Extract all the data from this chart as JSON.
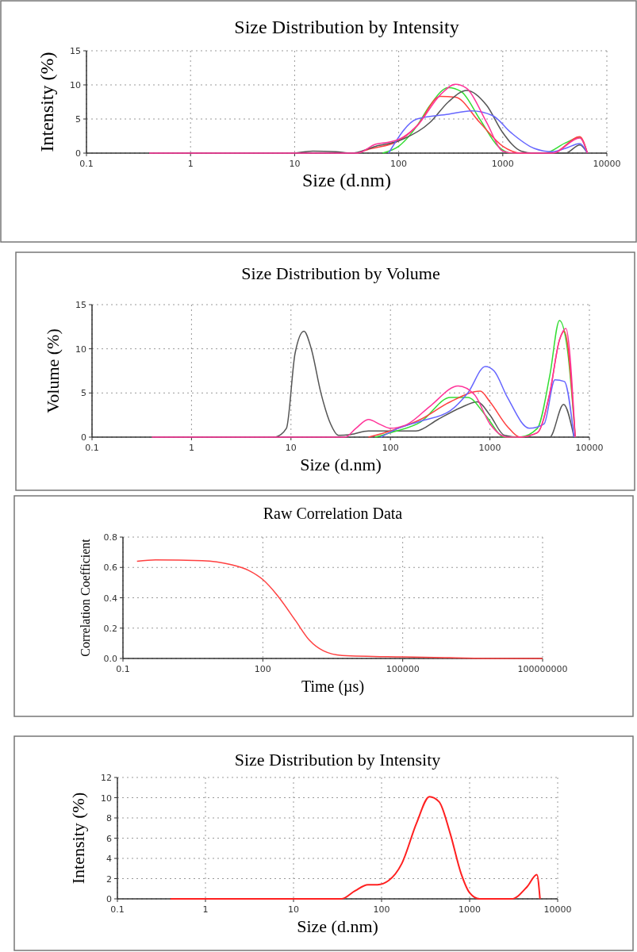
{
  "chart_data": [
    {
      "type": "line",
      "title": "Size Distribution by Intensity",
      "xlabel": "Size (d.nm)",
      "ylabel": "Intensity (%)",
      "log": "x",
      "grid": true,
      "xlim": [
        0.1,
        10000
      ],
      "xticks": [
        0.1,
        1,
        10,
        100,
        1000,
        10000
      ],
      "ylim": [
        0,
        15
      ],
      "yticks": [
        0,
        5,
        10,
        15
      ],
      "series": [
        {
          "color": "#33dd33",
          "x": [
            70,
            100,
            150,
            200,
            300,
            400,
            600,
            900,
            1200,
            2500,
            4000,
            5500,
            6500
          ],
          "values": [
            0,
            1,
            4,
            7,
            9.6,
            9,
            5,
            1,
            0,
            0,
            1.5,
            2.3,
            0
          ]
        },
        {
          "color": "#ff4040",
          "x": [
            40,
            50,
            100,
            150,
            250,
            350,
            600,
            1000,
            1500,
            3000,
            5500,
            6500
          ],
          "values": [
            0,
            0.5,
            1.8,
            4,
            8.3,
            8.2,
            4.5,
            1,
            0,
            0,
            2.4,
            0
          ]
        },
        {
          "color": "#555555",
          "x": [
            10,
            15,
            25,
            35,
            60,
            100,
            200,
            300,
            450,
            700,
            1000,
            1500,
            2000,
            4000,
            5500,
            6500
          ],
          "values": [
            0,
            0.3,
            0.2,
            0,
            1,
            1.8,
            4.5,
            7.5,
            9.2,
            7,
            3,
            0.3,
            0,
            0,
            1.2,
            0
          ]
        },
        {
          "color": "#6666ff",
          "x": [
            80,
            150,
            300,
            500,
            800,
            1200,
            2000,
            3000,
            4000,
            5500,
            6500
          ],
          "values": [
            0,
            5,
            5.7,
            6.2,
            5.5,
            3,
            0.7,
            0.2,
            0.7,
            1.4,
            0
          ]
        },
        {
          "color": "#ff3399",
          "x": [
            0.4,
            40,
            60,
            80,
            100,
            150,
            250,
            350,
            450,
            700,
            1000,
            1300,
            3000,
            5500,
            6500
          ],
          "values": [
            0,
            0,
            1.3,
            1.6,
            2,
            4,
            8.5,
            10.1,
            9.5,
            4.5,
            0.3,
            0,
            0,
            2.2,
            0
          ]
        }
      ]
    },
    {
      "type": "line",
      "title": "Size Distribution by Volume",
      "xlabel": "Size (d.nm)",
      "ylabel": "Volume (%)",
      "log": "x",
      "grid": true,
      "xlim": [
        0.1,
        10000
      ],
      "xticks": [
        0.1,
        1,
        10,
        100,
        1000,
        10000
      ],
      "ylim": [
        0,
        15
      ],
      "yticks": [
        0,
        5,
        10,
        15
      ],
      "series": [
        {
          "color": "#555555",
          "x": [
            7,
            9,
            11,
            13.5,
            16,
            20,
            25,
            30,
            40,
            60,
            100,
            180,
            300,
            500,
            750,
            1000,
            1400,
            2000,
            4000,
            5500,
            7000
          ],
          "values": [
            0,
            1,
            9.5,
            12,
            10,
            5,
            1.5,
            0.2,
            0.3,
            0.7,
            0.7,
            0.7,
            2,
            3.3,
            4,
            2.5,
            0.2,
            0,
            0,
            3.7,
            0
          ]
        },
        {
          "color": "#33dd33",
          "x": [
            70,
            100,
            200,
            400,
            600,
            900,
            1400,
            2000,
            3000,
            4000,
            5000,
            6000,
            7200
          ],
          "values": [
            0,
            0.5,
            1.7,
            4.5,
            4.5,
            2.5,
            0,
            0,
            1,
            7,
            13.2,
            10,
            0
          ]
        },
        {
          "color": "#ff4040",
          "x": [
            60,
            100,
            200,
            400,
            800,
            1000,
            1500,
            2000,
            3000,
            4000,
            5000,
            5600,
            7200
          ],
          "values": [
            0,
            0.7,
            2,
            4,
            5.2,
            4,
            1.2,
            0,
            0.5,
            5,
            11,
            12,
            0
          ]
        },
        {
          "color": "#6666ff",
          "x": [
            80,
            120,
            200,
            400,
            600,
            900,
            1100,
            1500,
            2500,
            3500,
            4500,
            5600,
            7000
          ],
          "values": [
            0,
            1,
            1.8,
            3,
            5,
            8,
            7.5,
            4.5,
            1,
            1.5,
            6.5,
            6.3,
            0
          ]
        },
        {
          "color": "#ff3399",
          "x": [
            0.4,
            35,
            45,
            60,
            80,
            100,
            150,
            250,
            480,
            700,
            1000,
            1500,
            2000,
            3000,
            4000,
            5000,
            5800,
            7200
          ],
          "values": [
            0,
            0,
            1,
            2,
            1.4,
            1,
            1.5,
            3.5,
            5.8,
            4.8,
            1.5,
            0,
            0,
            0.5,
            5,
            11,
            12.3,
            0
          ]
        }
      ]
    },
    {
      "type": "line",
      "title": "Raw Correlation Data",
      "xlabel": "Time (µs)",
      "ylabel": "Correlation Coefficient",
      "log": "x",
      "grid": true,
      "xlim": [
        0.1,
        100000000
      ],
      "xticks": [
        0.1,
        100,
        100000,
        100000000
      ],
      "ylim": [
        0,
        0.8
      ],
      "yticks": [
        {
          "value": 0,
          "label": "0.0"
        },
        0.2,
        0.4,
        0.6,
        0.8
      ],
      "series": [
        {
          "color": "#ff4040",
          "x": [
            0.2,
            0.5,
            5,
            20,
            50,
            100,
            200,
            500,
            1000,
            2000,
            5000,
            100000,
            1000000,
            10000000,
            100000000
          ],
          "values": [
            0.64,
            0.65,
            0.645,
            0.62,
            0.58,
            0.52,
            0.42,
            0.25,
            0.12,
            0.05,
            0.02,
            0.01,
            0.005,
            0,
            0
          ]
        }
      ]
    },
    {
      "type": "line",
      "title": "Size Distribution by Intensity",
      "xlabel": "Size (d.nm)",
      "ylabel": "Intensity (%)",
      "log": "x",
      "grid": true,
      "xlim": [
        0.1,
        10000
      ],
      "xticks": [
        0.1,
        1,
        10,
        100,
        1000,
        10000
      ],
      "ylim": [
        0,
        12
      ],
      "yticks": [
        0,
        2,
        4,
        6,
        8,
        10,
        12
      ],
      "series": [
        {
          "color": "#ff2020",
          "x": [
            0.4,
            35,
            50,
            70,
            90,
            120,
            170,
            250,
            350,
            450,
            600,
            800,
            1000,
            1300,
            3000,
            4500,
            5800,
            6300
          ],
          "values": [
            0,
            0,
            0.8,
            1.4,
            1.4,
            1.8,
            3.5,
            7.5,
            10.1,
            9.6,
            6.5,
            2.5,
            0.6,
            0,
            0,
            1.2,
            2.4,
            0
          ]
        }
      ]
    }
  ]
}
